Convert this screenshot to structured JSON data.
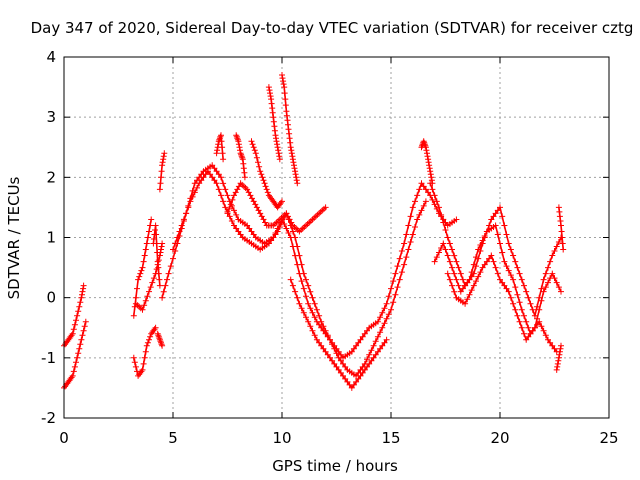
{
  "chart_data": {
    "type": "scatter",
    "title": "Day 347 of 2020, Sidereal Day-to-day VTEC variation (SDTVAR) for receiver cztg",
    "xlabel": "GPS time / hours",
    "ylabel": "SDTVAR / TECUs",
    "xlim": [
      0,
      25
    ],
    "ylim": [
      -2,
      4
    ],
    "xticks": [
      "0",
      "5",
      "10",
      "15",
      "20",
      "25"
    ],
    "yticks": [
      "-2",
      "-1",
      "0",
      "1",
      "2",
      "3",
      "4"
    ],
    "grid": true,
    "marker": "+",
    "color": "#ff0000",
    "series": [
      {
        "name": "s1",
        "x": [
          0.0,
          0.2,
          0.4,
          0.6,
          0.8,
          0.9
        ],
        "y": [
          -0.8,
          -0.7,
          -0.6,
          -0.3,
          0.0,
          0.2
        ]
      },
      {
        "name": "s2",
        "x": [
          0.0,
          0.2,
          0.4,
          0.6,
          0.8,
          1.0
        ],
        "y": [
          -1.5,
          -1.4,
          -1.3,
          -1.0,
          -0.7,
          -0.4
        ]
      },
      {
        "name": "s3",
        "x": [
          3.2,
          3.4,
          3.6,
          3.8,
          4.0
        ],
        "y": [
          -0.3,
          0.3,
          0.5,
          0.9,
          1.3
        ]
      },
      {
        "name": "s4",
        "x": [
          3.2,
          3.4,
          3.6,
          3.8,
          4.0,
          4.2
        ],
        "y": [
          -1.0,
          -1.3,
          -1.2,
          -0.8,
          -0.6,
          -0.5
        ]
      },
      {
        "name": "s5",
        "x": [
          3.3,
          3.6,
          3.9,
          4.2,
          4.4,
          4.5
        ],
        "y": [
          -0.1,
          -0.2,
          0.1,
          0.4,
          0.7,
          0.9
        ]
      },
      {
        "name": "s6",
        "x": [
          4.1,
          4.2,
          4.3,
          4.4
        ],
        "y": [
          0.9,
          1.2,
          0.6,
          0.2
        ]
      },
      {
        "name": "s7",
        "x": [
          4.4,
          4.5,
          4.6
        ],
        "y": [
          1.8,
          2.2,
          2.4
        ]
      },
      {
        "name": "s8",
        "x": [
          4.3,
          4.4,
          4.5
        ],
        "y": [
          -0.6,
          -0.7,
          -0.8
        ]
      },
      {
        "name": "s9",
        "x": [
          4.5,
          4.8,
          5.2,
          5.6,
          6.0,
          6.4,
          6.8,
          7.2,
          7.6,
          8.0,
          8.4,
          8.8,
          9.2,
          9.6,
          10.0,
          10.4,
          10.8,
          11.2,
          11.6,
          12.0,
          12.4,
          12.8,
          13.2,
          13.6,
          14.0,
          14.4,
          14.8,
          15.2,
          15.6,
          16.0,
          16.4,
          16.8,
          17.2,
          17.6,
          18.0
        ],
        "y": [
          0.0,
          0.4,
          0.9,
          1.4,
          1.9,
          2.1,
          2.2,
          2.0,
          1.6,
          1.3,
          1.2,
          1.0,
          0.9,
          1.0,
          1.3,
          1.0,
          0.4,
          -0.1,
          -0.4,
          -0.6,
          -0.8,
          -1.0,
          -0.9,
          -0.7,
          -0.5,
          -0.4,
          -0.1,
          0.4,
          0.9,
          1.5,
          1.9,
          1.7,
          1.4,
          1.2,
          1.3
        ]
      },
      {
        "name": "s10",
        "x": [
          5.0,
          5.4,
          5.8,
          6.2,
          6.6,
          7.0,
          7.4,
          7.8,
          8.2,
          8.6,
          9.0,
          9.4,
          9.8,
          10.2,
          10.6,
          11.0,
          11.4,
          11.8,
          12.2,
          12.6,
          13.0,
          13.4,
          13.8,
          14.2,
          14.6,
          15.0,
          15.4,
          15.8,
          16.2,
          16.6
        ],
        "y": [
          0.8,
          1.2,
          1.6,
          1.9,
          2.1,
          1.9,
          1.5,
          1.2,
          1.0,
          0.9,
          0.8,
          0.9,
          1.1,
          1.4,
          1.0,
          0.4,
          0.0,
          -0.4,
          -0.7,
          -1.0,
          -1.2,
          -1.3,
          -1.1,
          -0.8,
          -0.5,
          -0.2,
          0.3,
          0.8,
          1.3,
          1.6
        ]
      },
      {
        "name": "s11",
        "x": [
          7.5,
          7.8,
          8.1,
          8.4,
          8.7,
          9.0,
          9.3,
          9.6,
          9.9,
          10.2,
          10.5,
          10.8,
          11.1,
          11.4,
          11.7,
          12.0
        ],
        "y": [
          1.4,
          1.7,
          1.9,
          1.8,
          1.6,
          1.4,
          1.2,
          1.2,
          1.3,
          1.4,
          1.2,
          1.1,
          1.2,
          1.3,
          1.4,
          1.5
        ]
      },
      {
        "name": "s12",
        "x": [
          10.4,
          10.8,
          11.2,
          11.6,
          12.0,
          12.4,
          12.8,
          13.2,
          13.6,
          14.0,
          14.4,
          14.8
        ],
        "y": [
          0.3,
          -0.1,
          -0.4,
          -0.7,
          -0.9,
          -1.1,
          -1.3,
          -1.5,
          -1.3,
          -1.1,
          -0.9,
          -0.7
        ]
      },
      {
        "name": "s13",
        "x": [
          7.9,
          8.0,
          8.1,
          8.2,
          8.3
        ],
        "y": [
          2.7,
          2.6,
          2.4,
          2.3,
          2.0
        ]
      },
      {
        "name": "s14",
        "x": [
          7.0,
          7.1,
          7.2,
          7.3
        ],
        "y": [
          2.4,
          2.6,
          2.7,
          2.3
        ]
      },
      {
        "name": "s15",
        "x": [
          9.4,
          9.5,
          9.6,
          9.7,
          9.8,
          9.9
        ],
        "y": [
          3.5,
          3.3,
          3.0,
          2.7,
          2.5,
          2.3
        ]
      },
      {
        "name": "s16",
        "x": [
          10.0,
          10.1,
          10.2,
          10.3,
          10.4,
          10.5,
          10.6,
          10.7
        ],
        "y": [
          3.7,
          3.5,
          3.1,
          2.8,
          2.5,
          2.3,
          2.1,
          1.9
        ]
      },
      {
        "name": "s17",
        "x": [
          8.6,
          8.8,
          9.0,
          9.2,
          9.4,
          9.6,
          9.8,
          10.0
        ],
        "y": [
          2.6,
          2.4,
          2.1,
          1.9,
          1.7,
          1.6,
          1.5,
          1.6
        ]
      },
      {
        "name": "s18",
        "x": [
          16.4,
          16.5,
          16.6,
          16.7,
          16.8,
          16.9
        ],
        "y": [
          2.5,
          2.6,
          2.5,
          2.3,
          2.1,
          1.9
        ]
      },
      {
        "name": "s19",
        "x": [
          16.8,
          17.2,
          17.6,
          18.0,
          18.4,
          18.8,
          19.2,
          19.6,
          20.0,
          20.4,
          20.8,
          21.2,
          21.6,
          22.0,
          22.4,
          22.8
        ],
        "y": [
          1.9,
          1.5,
          1.0,
          0.6,
          0.2,
          0.4,
          0.9,
          1.3,
          1.5,
          0.9,
          0.5,
          0.1,
          -0.3,
          0.3,
          0.7,
          1.0
        ]
      },
      {
        "name": "s20",
        "x": [
          17.0,
          17.4,
          17.8,
          18.2,
          18.6,
          19.0,
          19.4,
          19.8,
          20.2,
          20.6,
          21.0,
          21.4,
          21.8,
          22.2,
          22.6
        ],
        "y": [
          0.6,
          0.9,
          0.5,
          0.1,
          0.3,
          0.8,
          1.1,
          1.2,
          0.6,
          0.3,
          -0.2,
          -0.6,
          -0.4,
          -0.7,
          -0.9
        ]
      },
      {
        "name": "s21",
        "x": [
          17.6,
          18.0,
          18.4,
          18.8,
          19.2,
          19.6,
          20.0,
          20.4,
          20.8,
          21.2,
          21.6,
          22.0,
          22.4,
          22.8
        ],
        "y": [
          0.4,
          0.0,
          -0.1,
          0.2,
          0.5,
          0.7,
          0.3,
          0.1,
          -0.3,
          -0.7,
          -0.5,
          0.1,
          0.4,
          0.1
        ]
      },
      {
        "name": "s22",
        "x": [
          22.6,
          22.7,
          22.8
        ],
        "y": [
          -1.2,
          -1.0,
          -0.8
        ]
      },
      {
        "name": "s23",
        "x": [
          22.7,
          22.8,
          22.9
        ],
        "y": [
          1.5,
          1.2,
          0.8
        ]
      }
    ]
  }
}
